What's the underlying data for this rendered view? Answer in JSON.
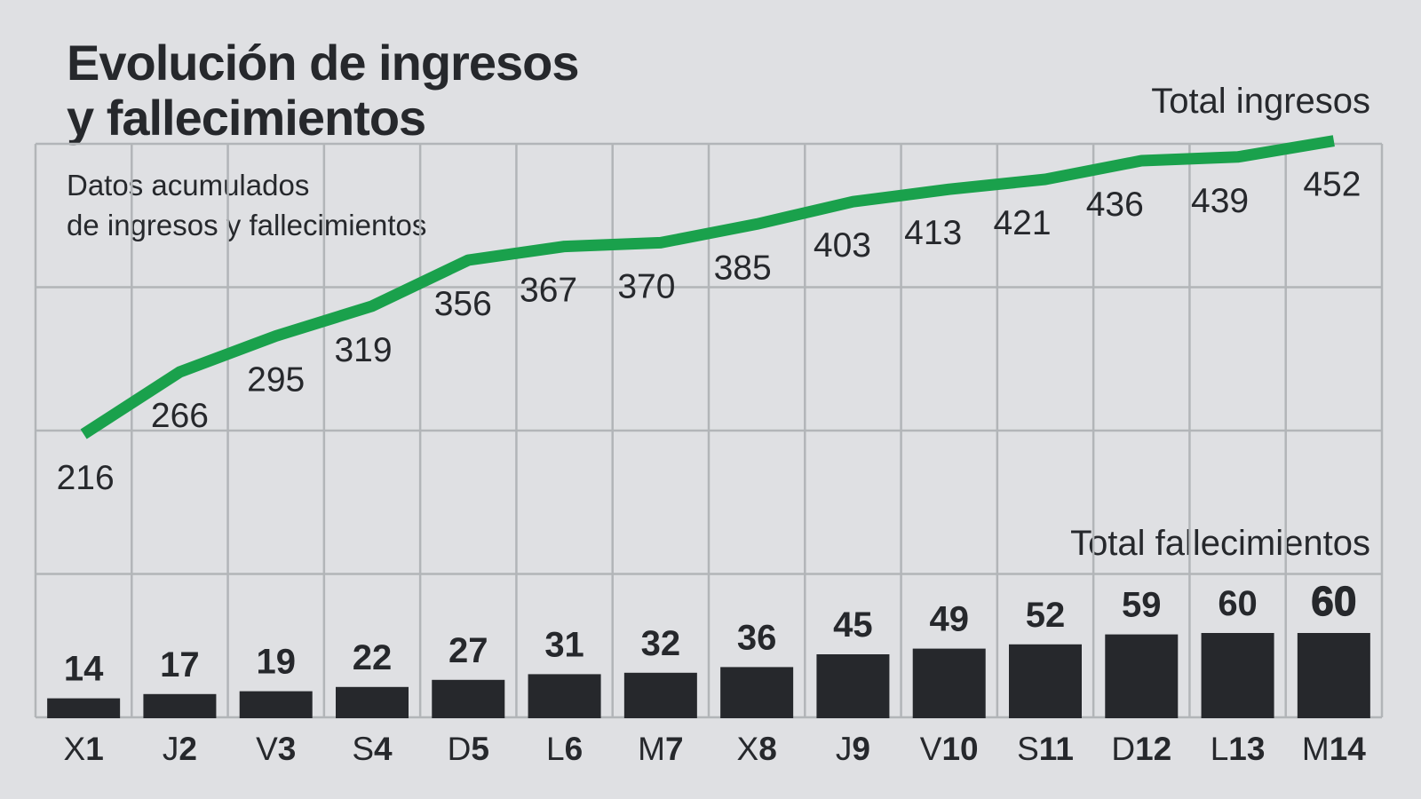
{
  "title": {
    "line1": "Evolución de ingresos",
    "line2": "y fallecimientos"
  },
  "subtitle": {
    "line1": "Datos acumulados",
    "line2": "de ingresos y fallecimientos"
  },
  "legend": {
    "ingresos": "Total ingresos",
    "fallecimientos": "Total fallecimientos"
  },
  "colors": {
    "background": "#dfe0e3",
    "grid": "#b2b5b8",
    "line": "#1aa14c",
    "bar": "#26282c",
    "text": "#26282c"
  },
  "chart_data": [
    {
      "type": "line",
      "name": "Total ingresos",
      "categories": [
        "X1",
        "J2",
        "V3",
        "S4",
        "D5",
        "L6",
        "M7",
        "X8",
        "J9",
        "V10",
        "S11",
        "D12",
        "L13",
        "M14"
      ],
      "values": [
        216,
        266,
        295,
        319,
        356,
        367,
        370,
        385,
        403,
        413,
        421,
        436,
        439,
        452
      ],
      "color": "#1aa14c",
      "value_labels_shown": true,
      "legend_position": "top-right"
    },
    {
      "type": "bar",
      "name": "Total fallecimientos",
      "categories": [
        "X1",
        "J2",
        "V3",
        "S4",
        "D5",
        "L6",
        "M7",
        "X8",
        "J9",
        "V10",
        "S11",
        "D12",
        "L13",
        "M14"
      ],
      "values": [
        14,
        17,
        19,
        22,
        27,
        31,
        32,
        36,
        45,
        49,
        52,
        59,
        60,
        60
      ],
      "color": "#26282c",
      "value_labels_shown": true,
      "last_value_emphasized": true,
      "legend_position": "above-bars-right"
    }
  ],
  "x_axis": {
    "labels": [
      "X1",
      "J2",
      "V3",
      "S4",
      "D5",
      "L6",
      "M7",
      "X8",
      "J9",
      "V10",
      "S11",
      "D12",
      "L13",
      "M14"
    ],
    "note": "day letter regular weight, day number bold"
  },
  "grid": {
    "vertical_lines": 15,
    "horizontal_lines": 5,
    "shown": true
  }
}
